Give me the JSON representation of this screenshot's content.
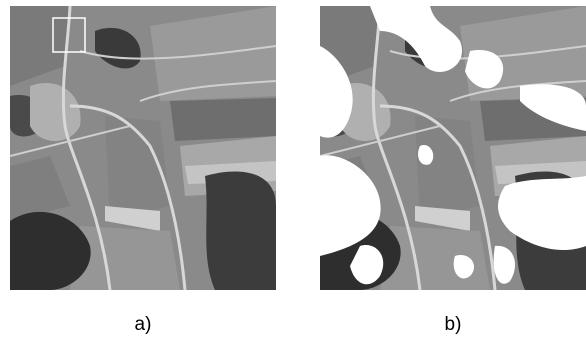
{
  "figure": {
    "panels": [
      {
        "caption": "a)"
      },
      {
        "caption": "b)"
      }
    ]
  }
}
